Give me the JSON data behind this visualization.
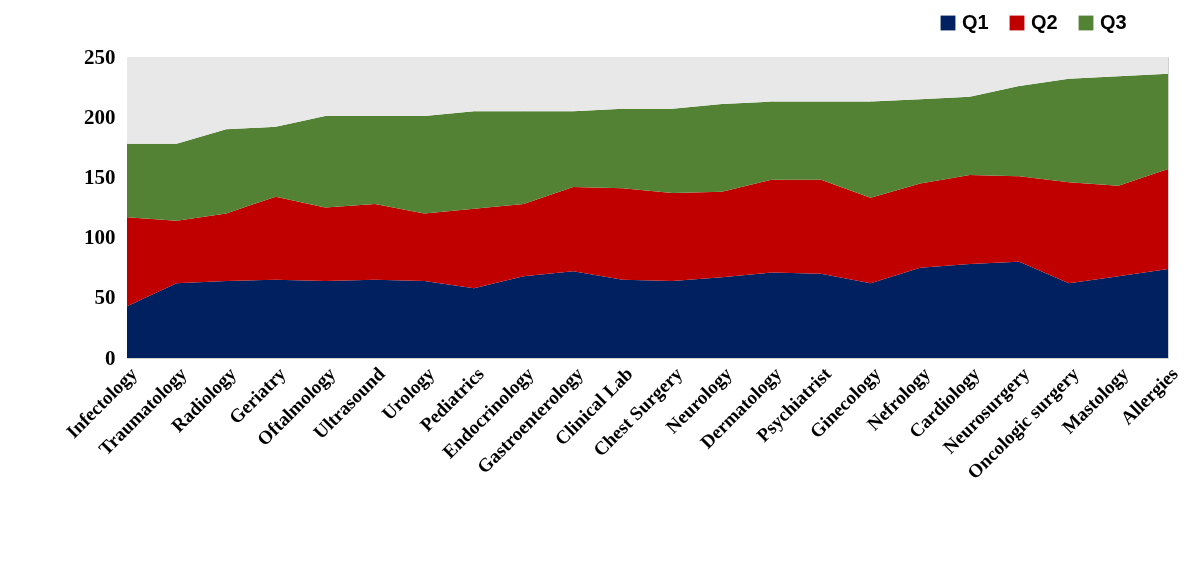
{
  "chart_data": {
    "type": "area",
    "stacked": true,
    "categories": [
      "Infectology",
      "Traumatology",
      "Radiology",
      "Geriatry",
      "Oftalmology",
      "Ultrasound",
      "Urology",
      "Pediatrics",
      "Endocrinology",
      "Gastroenterology",
      "Clinical Lab",
      "Chest Surgery",
      "Neurology",
      "Dermatology",
      "Psychiatrist",
      "Ginecology",
      "Nefrology",
      "Cardiology",
      "Neurosurgery",
      "Oncologic surgery",
      "Mastology",
      "Allergies"
    ],
    "series": [
      {
        "name": "Q1",
        "color": "#002060",
        "values": [
          43,
          62,
          64,
          65,
          64,
          65,
          64,
          58,
          68,
          72,
          65,
          64,
          67,
          71,
          70,
          62,
          75,
          78,
          80,
          62,
          68,
          74
        ]
      },
      {
        "name": "Q2",
        "color": "#c00000",
        "values": [
          74,
          52,
          56,
          69,
          61,
          63,
          56,
          66,
          60,
          70,
          76,
          73,
          71,
          77,
          78,
          71,
          70,
          74,
          71,
          84,
          75,
          83
        ]
      },
      {
        "name": "Q3",
        "color": "#548235",
        "values": [
          61,
          64,
          70,
          58,
          76,
          73,
          81,
          81,
          77,
          63,
          66,
          70,
          73,
          65,
          65,
          80,
          70,
          65,
          75,
          86,
          91,
          79
        ]
      },
      {
        "color": "#e8e8e8",
        "values": [
          72,
          72,
          60,
          58,
          49,
          49,
          49,
          45,
          45,
          45,
          43,
          43,
          39,
          37,
          37,
          37,
          35,
          33,
          24,
          18,
          16,
          14
        ]
      }
    ],
    "ylim": [
      0,
      250
    ],
    "yticks": [
      0,
      50,
      100,
      150,
      200,
      250
    ],
    "grid": true,
    "legend": "top right"
  }
}
